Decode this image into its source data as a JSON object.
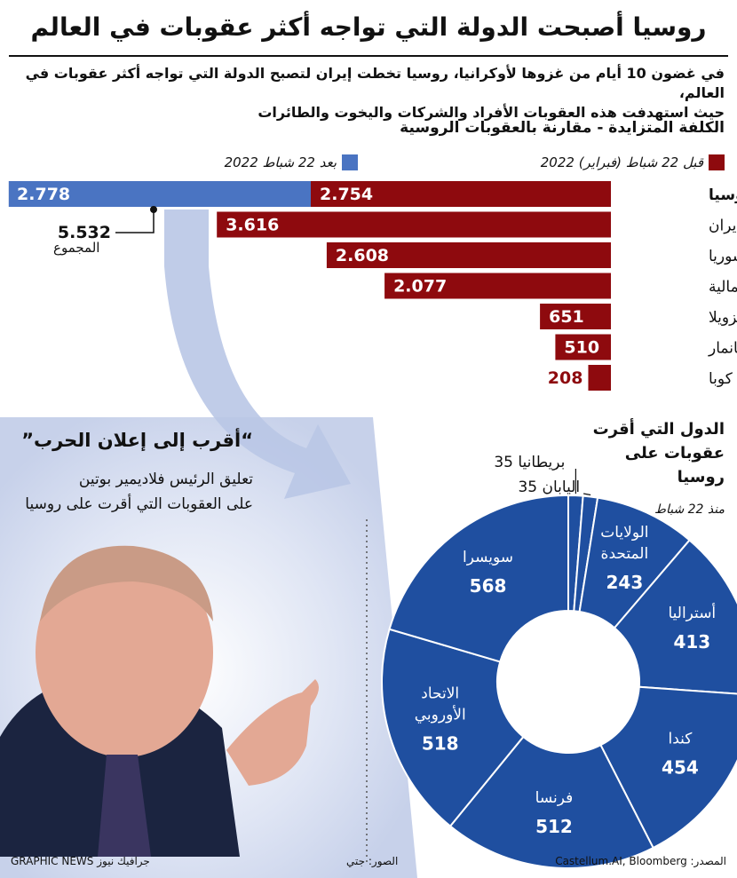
{
  "header": {
    "title": "روسيا أصبحت الدولة التي تواجه أكثر عقوبات في العالم",
    "subtitle_line1": "في غضون 10 أيام من غزوها لأوكرانيا، روسيا تخطت إيران لتصبح الدولة التي تواجه أكثر عقوبات في العالم،",
    "subtitle_line2": "حيث استهدفت هذه العقوبات الأفراد والشركات واليخوت والطائرات"
  },
  "bar_section": {
    "heading": "الكلفة المتزايدة - مقارنة بالعقوبات الروسية",
    "legend_before": "قبل 22 شباط (فبراير) 2022",
    "legend_after": "بعد 22 شباط 2022",
    "total_value": "5.532",
    "total_label": "المجموع"
  },
  "quote": {
    "headline": "“أقرب إلى إعلان الحرب”",
    "line1": "تعليق الرئيس فلاديمير بوتين",
    "line2": "على العقوبات التي أقرت على روسيا"
  },
  "donut_section": {
    "title_line1": "الدول التي أقرت",
    "title_line2": "عقوبات على",
    "title_line3": "روسيا",
    "since": "منذ 22 شباط"
  },
  "footer": {
    "source": "المصدر: Castellum.AI, Bloomberg",
    "photos": "الصور: جتي",
    "brand": "GRAPHIC NEWS جرافيك نيوز"
  },
  "colors": {
    "before": "#8e0a0e",
    "after": "#4a74c2",
    "donut": "#1f4fa0",
    "arrow": "#b9c6e6"
  },
  "chart_data": [
    {
      "type": "bar",
      "orientation": "horizontal",
      "categories": [
        "روسيا",
        "إيران",
        "سوريا",
        "كوريا الشمالية",
        "فنزويلا",
        "ميانمار",
        "كوبا"
      ],
      "series": [
        {
          "name": "قبل 22 شباط (فبراير) 2022",
          "values": [
            2754,
            3616,
            2608,
            2077,
            651,
            510,
            208
          ],
          "labels": [
            "2.754",
            "3.616",
            "2.608",
            "2.077",
            "651",
            "510",
            "208"
          ]
        },
        {
          "name": "بعد 22 شباط 2022",
          "values": [
            2778,
            0,
            0,
            0,
            0,
            0,
            0
          ],
          "labels": [
            "2.778",
            "",
            "",
            "",
            "",
            "",
            ""
          ]
        }
      ],
      "stacked": true,
      "total": {
        "category": "روسيا",
        "value": 5532,
        "label": "5.532"
      }
    },
    {
      "type": "pie",
      "donut": true,
      "slices": [
        {
          "label": "بريطانيا",
          "value": 35,
          "value_label": "35"
        },
        {
          "label": "اليابان",
          "value": 35,
          "value_label": "35"
        },
        {
          "label": "الولايات المتحدة",
          "value": 243,
          "value_label": "243"
        },
        {
          "label": "أستراليا",
          "value": 413,
          "value_label": "413"
        },
        {
          "label": "كندا",
          "value": 454,
          "value_label": "454"
        },
        {
          "label": "فرنسا",
          "value": 512,
          "value_label": "512"
        },
        {
          "label": "الاتحاد الأوروبي",
          "value": 518,
          "value_label": "518"
        },
        {
          "label": "سويسرا",
          "value": 568,
          "value_label": "568"
        }
      ]
    }
  ]
}
